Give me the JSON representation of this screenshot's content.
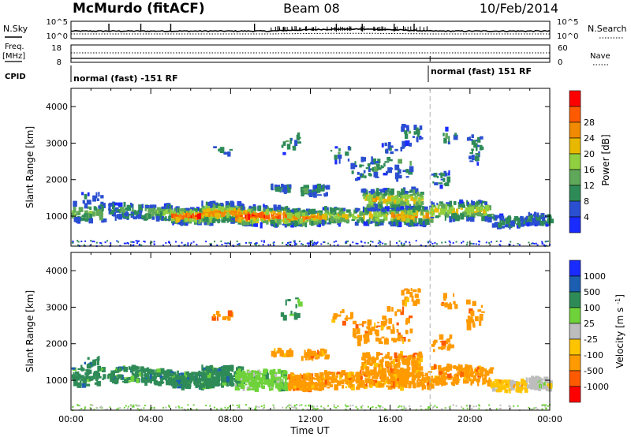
{
  "header": {
    "station": "McMurdo (fitACF)",
    "beam": "Beam 08",
    "date": "10/Feb/2014"
  },
  "meta_panel": {
    "nsky_label": "N.Sky",
    "nsearch_label": "N.Search",
    "noise_top_tick": "10^5",
    "noise_bottom_tick": "10^0",
    "freq_label": "Freq.",
    "freq_unit": "[MHz]",
    "freq_top": "18",
    "freq_bottom": "8",
    "nave_label": "Nave",
    "nave_top": "60",
    "nave_bottom": "0",
    "cpid_label": "CPID",
    "cpid_segments": [
      {
        "text": "normal (fast) -151 RF",
        "start_hour": 0
      },
      {
        "text": "normal (fast) 151 RF",
        "start_hour": 18
      }
    ]
  },
  "colors": {
    "power": [
      "#1a2bff",
      "#2a4fd0",
      "#2e8b57",
      "#5fa85a",
      "#90d040",
      "#e8b800",
      "#f08a00",
      "#ff5a00",
      "#ff0000"
    ],
    "velocity": [
      "#1a2bff",
      "#1c5fb0",
      "#2e8b57",
      "#6fd23a",
      "#bdbdbd",
      "#ffc400",
      "#ff9a00",
      "#ff5a00",
      "#ff0000"
    ],
    "marker_line": "#b0b0b0"
  },
  "chart_data": [
    {
      "type": "heatmap",
      "name": "power",
      "ylabel": "Slant Range [km]",
      "ylim": [
        180,
        4500
      ],
      "y_ticks": [
        "1000",
        "2000",
        "3000",
        "4000"
      ],
      "xlim": [
        0,
        24
      ],
      "colorbar": {
        "label": "Power [dB]",
        "range": [
          0,
          32
        ],
        "ticks": [
          "4",
          "8",
          "12",
          "16",
          "20",
          "24",
          "28"
        ]
      },
      "time_marker_hour": 18
    },
    {
      "type": "heatmap",
      "name": "velocity",
      "ylabel": "Slant Range [km]",
      "ylim": [
        180,
        4500
      ],
      "y_ticks": [
        "1000",
        "2000",
        "3000",
        "4000"
      ],
      "xlim": [
        0,
        24
      ],
      "xlabel": "Time UT",
      "x_ticks": [
        "00:00",
        "04:00",
        "08:00",
        "12:00",
        "16:00",
        "20:00",
        "00:00"
      ],
      "colorbar": {
        "label": "Velocity [m s^-1]",
        "ticks": [
          "1000",
          "500",
          "100",
          "25",
          "-25",
          "-100",
          "-500",
          "-1000"
        ]
      },
      "time_marker_hour": 18
    }
  ]
}
